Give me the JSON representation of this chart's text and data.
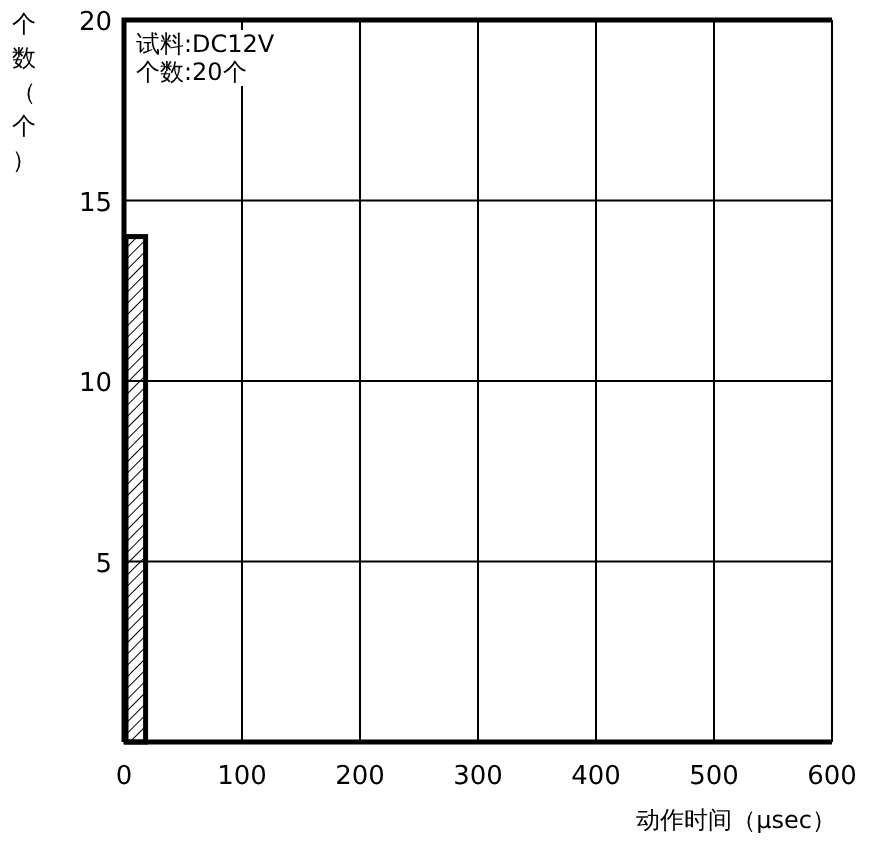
{
  "chart_data": {
    "type": "histogram",
    "bins": [
      0,
      20
    ],
    "values": [
      14
    ],
    "color": "#000000",
    "xlim": [
      0,
      600
    ],
    "ylim": [
      0,
      20
    ],
    "xticks": [
      0,
      100,
      200,
      300,
      400,
      500,
      600
    ],
    "yticks": [
      5,
      10,
      15,
      20
    ],
    "xlabel": "动作时间（μsec）",
    "ylabel": "个数（个）",
    "grid": true,
    "annotations": [
      "试料:DC12V",
      "个数:20个"
    ]
  }
}
